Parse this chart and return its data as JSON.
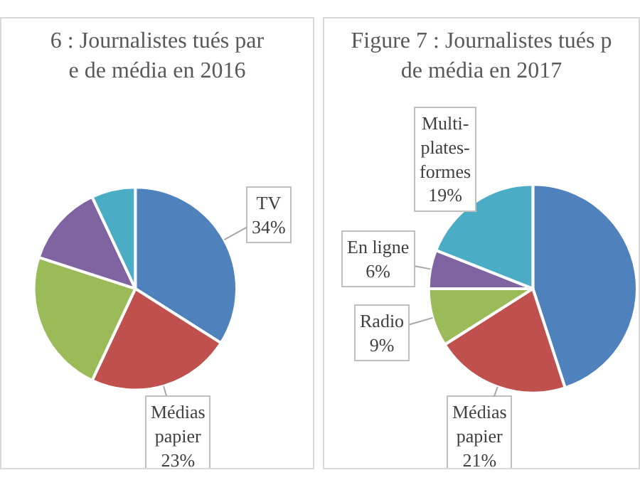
{
  "chart_data": [
    {
      "type": "pie",
      "title": "6 : Journalistes tués par\ne de média en 2016",
      "categories": [
        "TV",
        "Médias papier",
        null,
        null,
        null
      ],
      "values": [
        34,
        23,
        23,
        13,
        7
      ],
      "value_labels": [
        "34%",
        "23%",
        null,
        null,
        null
      ],
      "colors": [
        "#4f81bd",
        "#c0504d",
        "#9bbb59",
        "#8064a2",
        "#4bacc6"
      ]
    },
    {
      "type": "pie",
      "title": "Figure 7 : Journalistes tués p\nde média en 2017",
      "categories": [
        null,
        "Médias papier",
        "Radio",
        "En ligne",
        "Multi-plates-formes"
      ],
      "values": [
        45,
        21,
        9,
        6,
        19
      ],
      "value_labels": [
        null,
        "21%",
        "9%",
        "6%",
        "19%"
      ],
      "colors": [
        "#4f81bd",
        "#c0504d",
        "#9bbb59",
        "#8064a2",
        "#4bacc6"
      ]
    }
  ]
}
